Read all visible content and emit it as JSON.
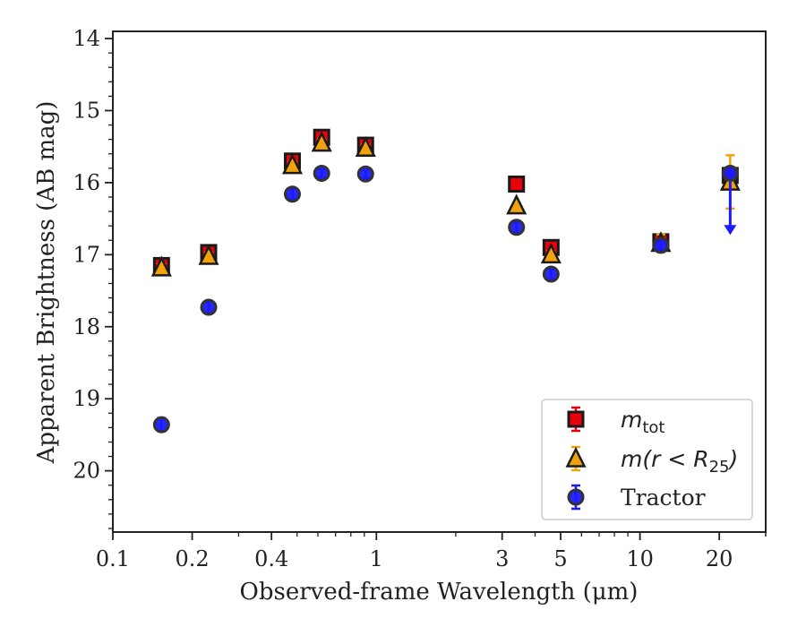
{
  "chart_data": {
    "type": "scatter",
    "title": "",
    "xlabel": "Observed-frame Wavelength (μm)",
    "ylabel": "Apparent Brightness (AB mag)",
    "xscale": "log",
    "xlim": [
      0.1,
      30
    ],
    "ylim": [
      20.85,
      13.9
    ],
    "y_inverted": true,
    "xticks": [
      0.1,
      0.2,
      0.4,
      1,
      3,
      5,
      10,
      20
    ],
    "xtick_labels": [
      "0.1",
      "0.2",
      "0.4",
      "1",
      "3",
      "5",
      "10",
      "20"
    ],
    "yticks": [
      14,
      15,
      16,
      17,
      18,
      19,
      20
    ],
    "ytick_labels": [
      "14",
      "15",
      "16",
      "17",
      "18",
      "19",
      "20"
    ],
    "grid": false,
    "legend_position": "bottom-right",
    "series": [
      {
        "name": "m_tot",
        "legend_main": "m",
        "legend_sub": "tot",
        "marker": "square",
        "color": "#e8000b",
        "error_color": "#e8000b",
        "points": [
          {
            "x": 0.153,
            "y": 17.15,
            "yerr": 0.05
          },
          {
            "x": 0.231,
            "y": 16.97,
            "yerr": 0.05
          },
          {
            "x": 0.48,
            "y": 15.7,
            "yerr": 0.05
          },
          {
            "x": 0.62,
            "y": 15.37,
            "yerr": 0.05
          },
          {
            "x": 0.91,
            "y": 15.48,
            "yerr": 0.05
          },
          {
            "x": 3.4,
            "y": 16.02,
            "yerr": 0.03
          },
          {
            "x": 4.6,
            "y": 16.9,
            "yerr": 0.04
          },
          {
            "x": 12.0,
            "y": 16.82,
            "yerr": 0.08
          },
          {
            "x": 22.0,
            "y": 15.9,
            "yerr": 0.08
          }
        ]
      },
      {
        "name": "m(r < R25)",
        "legend_main": "m(r < R",
        "legend_sub": "25",
        "legend_tail": ")",
        "marker": "triangle",
        "color": "#f1a10c",
        "error_color": "#f1a10c",
        "points": [
          {
            "x": 0.153,
            "y": 17.18,
            "yerr": 0.05
          },
          {
            "x": 0.231,
            "y": 17.02,
            "yerr": 0.05
          },
          {
            "x": 0.48,
            "y": 15.76,
            "yerr": 0.05
          },
          {
            "x": 0.62,
            "y": 15.45,
            "yerr": 0.05
          },
          {
            "x": 0.91,
            "y": 15.52,
            "yerr": 0.05
          },
          {
            "x": 3.4,
            "y": 16.32,
            "yerr": 0.04
          },
          {
            "x": 4.6,
            "y": 17.0,
            "yerr": 0.05
          },
          {
            "x": 12.0,
            "y": 16.84,
            "yerr": 0.12
          },
          {
            "x": 22.0,
            "y": 15.99,
            "yerr": 0.37
          }
        ]
      },
      {
        "name": "Tractor",
        "legend_main": "Tractor",
        "marker": "circle",
        "color": "#1a1aff",
        "error_color": "#1a1aff",
        "points": [
          {
            "x": 0.153,
            "y": 19.36,
            "yerr": 0.09
          },
          {
            "x": 0.231,
            "y": 17.73,
            "yerr": 0.08
          },
          {
            "x": 0.48,
            "y": 16.16,
            "yerr": 0.07
          },
          {
            "x": 0.62,
            "y": 15.87,
            "yerr": 0.06
          },
          {
            "x": 0.91,
            "y": 15.88,
            "yerr": 0.06
          },
          {
            "x": 3.4,
            "y": 16.62,
            "yerr": 0.07
          },
          {
            "x": 4.6,
            "y": 17.27,
            "yerr": 0.07
          },
          {
            "x": 12.0,
            "y": 16.87,
            "yerr": 0.06
          },
          {
            "x": 22.0,
            "y": 15.87,
            "yerr": 0.08,
            "upper_limit_to": 16.7
          }
        ]
      }
    ]
  }
}
